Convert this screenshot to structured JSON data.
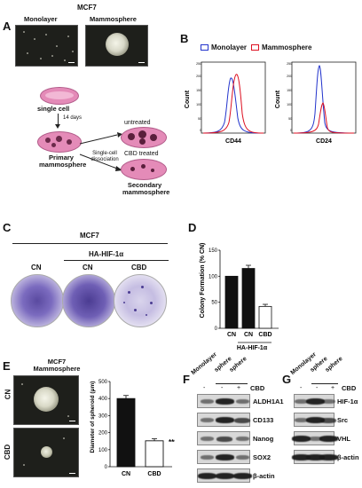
{
  "panelA": {
    "label": "A",
    "cell_line": "MCF7",
    "img1_label": "Monolayer",
    "img2_label": "Mammosphere",
    "schematic": {
      "single_cell": "single cell",
      "days": "14 days",
      "dissociation": "Single-cell dissociation",
      "primary": "Primary mammosphere",
      "untreated": "untreated",
      "cbd_treated": "CBD treated",
      "secondary": "Secondary mammosphere"
    }
  },
  "panelB": {
    "label": "B",
    "legend": [
      "Monolayer",
      "Mammosphere"
    ],
    "colors": {
      "monolayer": "#2233cc",
      "mammosphere": "#dd1122"
    },
    "plots": [
      {
        "xlabel": "CD44",
        "ylabel": "Count",
        "yticks": [
          "0",
          "50",
          "100",
          "150",
          "200",
          "250"
        ]
      },
      {
        "xlabel": "CD24",
        "ylabel": "Count",
        "yticks": [
          "0",
          "50",
          "100",
          "150",
          "200",
          "250"
        ]
      }
    ]
  },
  "panelC": {
    "label": "C",
    "cell_line": "MCF7",
    "ha_label": "HA-HIF-1α",
    "dish_labels": [
      "CN",
      "CN",
      "CBD"
    ]
  },
  "panelD": {
    "label": "D",
    "chart_data": {
      "type": "bar",
      "categories": [
        "CN",
        "CN",
        "CBD"
      ],
      "values": [
        100,
        115,
        42
      ],
      "errors": [
        0,
        6,
        4
      ],
      "ylabel": "Colony Formation (% CN)",
      "group_label": "HA-HIF-1α",
      "ylim": [
        0,
        150
      ],
      "yticks": [
        "0",
        "50",
        "100",
        "150"
      ],
      "fills": [
        "#111111",
        "#111111",
        "#ffffff"
      ]
    }
  },
  "panelE": {
    "label": "E",
    "title_line1": "MCF7",
    "title_line2": "Mammosphere",
    "row_labels": [
      "CN",
      "CBD"
    ],
    "chart_data": {
      "type": "bar",
      "categories": [
        "CN",
        "CBD"
      ],
      "values": [
        400,
        152
      ],
      "errors": [
        18,
        12
      ],
      "ylabel": "Diameter of spheroid (μm)",
      "ylim": [
        0,
        500
      ],
      "yticks": [
        "0",
        "100",
        "200",
        "300",
        "400",
        "500"
      ],
      "significance": "***",
      "fills": [
        "#111111",
        "#ffffff"
      ]
    }
  },
  "panelF": {
    "label": "F",
    "col_labels": [
      "Monolayer",
      "sphere",
      "sphere"
    ],
    "cbd_label": "CBD",
    "cbd_values": [
      "-",
      "-",
      "+"
    ],
    "proteins": [
      "ALDH1A1",
      "CD133",
      "Nanog",
      "SOX2",
      "β-actin"
    ]
  },
  "panelG": {
    "label": "G",
    "col_labels": [
      "Monolayer",
      "sphere",
      "sphere"
    ],
    "cbd_label": "CBD",
    "cbd_values": [
      "-",
      "-",
      "+"
    ],
    "proteins": [
      "HIF-1α",
      "Src",
      "VHL",
      "β-actin"
    ]
  }
}
